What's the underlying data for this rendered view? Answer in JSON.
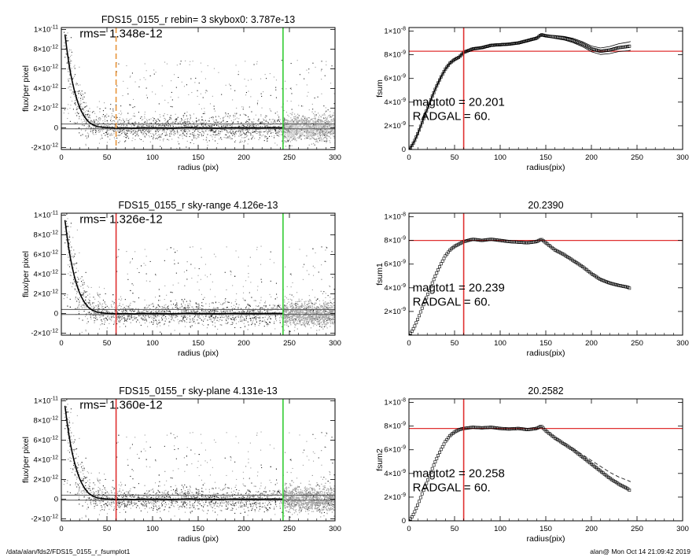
{
  "chart_data": [
    {
      "type": "scatter",
      "title": "FDS15_0155_r rebin= 3    skybox0:  3.787e-13",
      "xlabel": "radius (pix)",
      "ylabel": "flux/per pixel",
      "xlim": [
        0,
        300
      ],
      "ylim": [
        -2.2e-12,
        1.02e-11
      ],
      "xticks": [
        0,
        50,
        100,
        150,
        200,
        250,
        300
      ],
      "xtick_labels": [
        "0",
        "50",
        "100",
        "150",
        "200",
        "250",
        "300"
      ],
      "yticks": [
        -2e-12,
        0,
        2e-12,
        4e-12,
        6e-12,
        8e-12,
        1e-11
      ],
      "ytick_labels": [
        {
          "m": "-2×10",
          "e": "-12"
        },
        {
          "m": "0",
          "e": ""
        },
        {
          "m": "2×10",
          "e": "-12"
        },
        {
          "m": "4×10",
          "e": "-12"
        },
        {
          "m": "6×10",
          "e": "-12"
        },
        {
          "m": "8×10",
          "e": "-12"
        },
        {
          "m": "1×10",
          "e": "-11"
        }
      ],
      "annotations": [
        {
          "text": "rms= 1.348e-12",
          "x": 20,
          "y": 9.2e-12
        }
      ],
      "vlines": [
        {
          "x": 60,
          "color": "#e8943a",
          "style": "dashed"
        },
        {
          "x": 243,
          "color": "#33cc33",
          "style": "solid"
        }
      ],
      "hlines": [
        3.9e-13,
        -1e-13
      ],
      "profile": {
        "color": "#000000",
        "x": [
          4,
          6,
          8,
          10,
          12,
          14,
          16,
          18,
          20,
          22,
          24,
          26,
          28,
          30,
          33,
          36,
          40,
          45,
          50,
          55,
          60,
          70,
          80,
          90,
          100,
          110,
          120,
          130,
          140,
          150,
          160,
          170,
          180,
          190,
          200,
          210,
          220,
          230,
          240,
          243
        ],
        "y": [
          9.5e-12,
          8e-12,
          6.7e-12,
          5.6e-12,
          4.7e-12,
          3.9e-12,
          3.2e-12,
          2.6e-12,
          2.1e-12,
          1.7e-12,
          1.35e-12,
          1.05e-12,
          8e-13,
          6e-13,
          4e-13,
          2.5e-13,
          1.2e-13,
          6e-14,
          2e-14,
          0,
          -2e-14,
          0,
          -3e-14,
          2e-14,
          -1e-14,
          1e-14,
          -2e-14,
          0,
          3e-14,
          -1e-14,
          1e-14,
          -2e-14,
          0,
          2e-14,
          -1e-14,
          1e-14,
          -1e-14,
          2e-14,
          1e-14,
          1.5e-14
        ]
      },
      "noise_sigma": 6e-13,
      "outlier_max": 7e-12,
      "right_band": true,
      "right_band_style": "boxes"
    },
    {
      "type": "line",
      "title": "",
      "xlabel": "radius(pix)",
      "ylabel": "fsum",
      "xlim": [
        0,
        300
      ],
      "ylim": [
        0,
        1.03e-08
      ],
      "xticks": [
        0,
        50,
        100,
        150,
        200,
        250,
        300
      ],
      "xtick_labels": [
        "0",
        "50",
        "100",
        "150",
        "200",
        "250",
        "300"
      ],
      "yticks": [
        0,
        2e-09,
        4e-09,
        6e-09,
        8e-09,
        1e-08
      ],
      "ytick_labels": [
        {
          "m": "0",
          "e": ""
        },
        {
          "m": "2×10",
          "e": "-9"
        },
        {
          "m": "4×10",
          "e": "-9"
        },
        {
          "m": "6×10",
          "e": "-9"
        },
        {
          "m": "8×10",
          "e": "-9"
        },
        {
          "m": "1×10",
          "e": "-8"
        }
      ],
      "annotations": [
        {
          "text": "magtot0 =  20.201",
          "x": 4,
          "y": 3.7e-09
        },
        {
          "text": "RADGAL =     60.",
          "x": 4,
          "y": 2.5e-09
        }
      ],
      "vlines": [
        {
          "x": 60,
          "color": "#e03030",
          "style": "solid"
        }
      ],
      "hlines_red": [
        8.3e-09
      ],
      "series": [
        {
          "marker": "square",
          "band": true,
          "band_grow": 3e-11,
          "x": [
            0,
            3,
            6,
            10,
            15,
            20,
            25,
            30,
            35,
            40,
            45,
            50,
            55,
            60,
            70,
            80,
            90,
            100,
            110,
            120,
            130,
            140,
            145,
            150,
            160,
            170,
            180,
            190,
            200,
            210,
            220,
            230,
            240,
            243
          ],
          "y": [
            0,
            3e-10,
            7e-10,
            1.4e-09,
            2.4e-09,
            3.4e-09,
            4.4e-09,
            5.3e-09,
            6.1e-09,
            6.8e-09,
            7.3e-09,
            7.6e-09,
            7.8e-09,
            8.2e-09,
            8.5e-09,
            8.6e-09,
            8.8e-09,
            8.85e-09,
            8.9e-09,
            9e-09,
            9.2e-09,
            9.4e-09,
            9.7e-09,
            9.6e-09,
            9.5e-09,
            9.4e-09,
            9.2e-09,
            8.9e-09,
            8.5e-09,
            8.3e-09,
            8.4e-09,
            8.6e-09,
            8.7e-09,
            8.75e-09
          ]
        }
      ]
    },
    {
      "type": "scatter",
      "title": "FDS15_0155_r sky-range  4.126e-13",
      "xlabel": "radius (pix)",
      "ylabel": "flux/per pixel",
      "xlim": [
        0,
        300
      ],
      "ylim": [
        -2.2e-12,
        1.02e-11
      ],
      "xticks": [
        0,
        50,
        100,
        150,
        200,
        250,
        300
      ],
      "xtick_labels": [
        "0",
        "50",
        "100",
        "150",
        "200",
        "250",
        "300"
      ],
      "yticks": [
        -2e-12,
        0,
        2e-12,
        4e-12,
        6e-12,
        8e-12,
        1e-11
      ],
      "ytick_labels": [
        {
          "m": "-2×10",
          "e": "-12"
        },
        {
          "m": "0",
          "e": ""
        },
        {
          "m": "2×10",
          "e": "-12"
        },
        {
          "m": "4×10",
          "e": "-12"
        },
        {
          "m": "6×10",
          "e": "-12"
        },
        {
          "m": "8×10",
          "e": "-12"
        },
        {
          "m": "1×10",
          "e": "-11"
        }
      ],
      "annotations": [
        {
          "text": "rms= 1.326e-12",
          "x": 20,
          "y": 9.2e-12
        }
      ],
      "vlines": [
        {
          "x": 60,
          "color": "#e03030",
          "style": "solid"
        },
        {
          "x": 243,
          "color": "#33cc33",
          "style": "solid"
        }
      ],
      "hlines": [
        4.1e-13,
        -1e-13
      ],
      "profile": {
        "color": "#000000",
        "x": [
          4,
          6,
          8,
          10,
          12,
          14,
          16,
          18,
          20,
          22,
          24,
          26,
          28,
          30,
          33,
          36,
          40,
          45,
          50,
          55,
          60,
          70,
          80,
          90,
          100,
          110,
          120,
          130,
          140,
          150,
          160,
          170,
          180,
          190,
          200,
          210,
          220,
          230,
          240,
          243
        ],
        "y": [
          9.5e-12,
          8e-12,
          6.7e-12,
          5.6e-12,
          4.7e-12,
          3.9e-12,
          3.2e-12,
          2.6e-12,
          2.1e-12,
          1.7e-12,
          1.35e-12,
          1.05e-12,
          8e-13,
          6e-13,
          4e-13,
          2.5e-13,
          1.2e-13,
          6e-14,
          2e-14,
          0,
          -2e-14,
          0,
          -3e-14,
          2e-14,
          -1e-14,
          1e-14,
          -2e-14,
          0,
          3e-14,
          -1e-14,
          1e-14,
          -2e-14,
          0,
          2e-14,
          -1e-14,
          1e-14,
          -1e-14,
          2e-14,
          1e-14,
          1.5e-14
        ]
      },
      "noise_sigma": 6e-13,
      "outlier_max": 7e-12,
      "right_band": true,
      "right_band_style": "plain"
    },
    {
      "type": "line",
      "title": "20.2390",
      "xlabel": "radius(pix)",
      "ylabel": "fsum1",
      "xlim": [
        0,
        300
      ],
      "ylim": [
        0,
        1.03e-08
      ],
      "xticks": [
        0,
        50,
        100,
        150,
        200,
        250,
        300
      ],
      "xtick_labels": [
        "0",
        "50",
        "100",
        "150",
        "200",
        "250",
        "300"
      ],
      "yticks": [
        2e-09,
        4e-09,
        6e-09,
        8e-09,
        1e-08
      ],
      "ytick_labels": [
        {
          "m": "2×10",
          "e": "-9"
        },
        {
          "m": "4×10",
          "e": "-9"
        },
        {
          "m": "6×10",
          "e": "-9"
        },
        {
          "m": "8×10",
          "e": "-9"
        },
        {
          "m": "1×10",
          "e": "-8"
        }
      ],
      "annotations": [
        {
          "text": "magtot1 =  20.239",
          "x": 4,
          "y": 3.7e-09
        },
        {
          "text": "RADGAL =     60.",
          "x": 4,
          "y": 2.5e-09
        }
      ],
      "vlines": [
        {
          "x": 60,
          "color": "#e03030",
          "style": "solid"
        }
      ],
      "hlines_red": [
        8e-09
      ],
      "series": [
        {
          "marker": "square",
          "band": false,
          "band_grow": 0,
          "x": [
            0,
            3,
            6,
            10,
            15,
            20,
            25,
            30,
            35,
            40,
            45,
            50,
            55,
            60,
            70,
            80,
            90,
            100,
            110,
            120,
            130,
            140,
            145,
            150,
            160,
            170,
            180,
            190,
            200,
            210,
            220,
            230,
            240,
            243
          ],
          "y": [
            0,
            3e-10,
            7e-10,
            1.4e-09,
            2.4e-09,
            3.3e-09,
            4.3e-09,
            5.2e-09,
            6e-09,
            6.7e-09,
            7.2e-09,
            7.5e-09,
            7.7e-09,
            7.9e-09,
            8.1e-09,
            8e-09,
            8.1e-09,
            8e-09,
            7.9e-09,
            7.85e-09,
            7.8e-09,
            7.9e-09,
            8.1e-09,
            7.8e-09,
            7.2e-09,
            6.8e-09,
            6.3e-09,
            5.8e-09,
            5.2e-09,
            4.7e-09,
            4.4e-09,
            4.2e-09,
            4.05e-09,
            3.9e-09
          ]
        }
      ]
    },
    {
      "type": "scatter",
      "title": "FDS15_0155_r sky-plane  4.131e-13",
      "xlabel": "radius (pix)",
      "ylabel": "flux/per pixel",
      "xlim": [
        0,
        300
      ],
      "ylim": [
        -2.2e-12,
        1.02e-11
      ],
      "xticks": [
        0,
        50,
        100,
        150,
        200,
        250,
        300
      ],
      "xtick_labels": [
        "0",
        "50",
        "100",
        "150",
        "200",
        "250",
        "300"
      ],
      "yticks": [
        -2e-12,
        0,
        2e-12,
        4e-12,
        6e-12,
        8e-12,
        1e-11
      ],
      "ytick_labels": [
        {
          "m": "-2×10",
          "e": "-12"
        },
        {
          "m": "0",
          "e": ""
        },
        {
          "m": "2×10",
          "e": "-12"
        },
        {
          "m": "4×10",
          "e": "-12"
        },
        {
          "m": "6×10",
          "e": "-12"
        },
        {
          "m": "8×10",
          "e": "-12"
        },
        {
          "m": "1×10",
          "e": "-11"
        }
      ],
      "annotations": [
        {
          "text": "rms= 1.360e-12",
          "x": 20,
          "y": 9.2e-12
        }
      ],
      "vlines": [
        {
          "x": 60,
          "color": "#e03030",
          "style": "solid"
        },
        {
          "x": 243,
          "color": "#33cc33",
          "style": "solid"
        }
      ],
      "hlines": [
        4.1e-13,
        -1e-13
      ],
      "profile": {
        "color": "#000000",
        "x": [
          4,
          6,
          8,
          10,
          12,
          14,
          16,
          18,
          20,
          22,
          24,
          26,
          28,
          30,
          33,
          36,
          40,
          45,
          50,
          55,
          60,
          70,
          80,
          90,
          100,
          110,
          120,
          130,
          140,
          150,
          160,
          170,
          180,
          190,
          200,
          210,
          220,
          230,
          240,
          243
        ],
        "y": [
          9.5e-12,
          8e-12,
          6.7e-12,
          5.6e-12,
          4.7e-12,
          3.9e-12,
          3.2e-12,
          2.6e-12,
          2.1e-12,
          1.7e-12,
          1.35e-12,
          1.05e-12,
          8e-13,
          6e-13,
          4e-13,
          2.5e-13,
          1.2e-13,
          6e-14,
          2e-14,
          0,
          -2e-14,
          0,
          -3e-14,
          2e-14,
          -1e-14,
          1e-14,
          -2e-14,
          0,
          3e-14,
          -1e-14,
          1e-14,
          -2e-14,
          0,
          2e-14,
          -1e-14,
          1e-14,
          -1e-14,
          2e-14,
          1e-14,
          1.5e-14
        ]
      },
      "noise_sigma": 6e-13,
      "outlier_max": 7e-12,
      "right_band": true,
      "right_band_style": "plain"
    },
    {
      "type": "line",
      "title": "20.2582",
      "xlabel": "radius(pix)",
      "ylabel": "fsum2",
      "xlim": [
        0,
        300
      ],
      "ylim": [
        0,
        1.03e-08
      ],
      "xticks": [
        0,
        50,
        100,
        150,
        200,
        250,
        300
      ],
      "xtick_labels": [
        "0",
        "50",
        "100",
        "150",
        "200",
        "250",
        "300"
      ],
      "yticks": [
        0,
        2e-09,
        4e-09,
        6e-09,
        8e-09,
        1e-08
      ],
      "ytick_labels": [
        {
          "m": "0",
          "e": ""
        },
        {
          "m": "2×10",
          "e": "-9"
        },
        {
          "m": "4×10",
          "e": "-9"
        },
        {
          "m": "6×10",
          "e": "-9"
        },
        {
          "m": "8×10",
          "e": "-9"
        },
        {
          "m": "1×10",
          "e": "-8"
        }
      ],
      "annotations": [
        {
          "text": "magtot2 =  20.258",
          "x": 4,
          "y": 3.7e-09
        },
        {
          "text": "RADGAL =     60.",
          "x": 4,
          "y": 2.5e-09
        }
      ],
      "vlines": [
        {
          "x": 60,
          "color": "#e03030",
          "style": "solid"
        }
      ],
      "hlines_red": [
        7.8e-09
      ],
      "series": [
        {
          "marker": "square",
          "band": false,
          "band_grow": 0,
          "x": [
            0,
            3,
            6,
            10,
            15,
            20,
            25,
            30,
            35,
            40,
            45,
            50,
            55,
            60,
            70,
            80,
            90,
            100,
            110,
            120,
            130,
            140,
            145,
            150,
            160,
            170,
            180,
            190,
            200,
            210,
            220,
            230,
            240,
            243
          ],
          "y": [
            0,
            3e-10,
            7e-10,
            1.4e-09,
            2.4e-09,
            3.3e-09,
            4.3e-09,
            5.2e-09,
            6e-09,
            6.7e-09,
            7.2e-09,
            7.5e-09,
            7.7e-09,
            7.8e-09,
            7.9e-09,
            7.85e-09,
            7.9e-09,
            7.8e-09,
            7.75e-09,
            7.8e-09,
            7.7e-09,
            7.8e-09,
            8e-09,
            7.6e-09,
            7e-09,
            6.5e-09,
            6e-09,
            5.4e-09,
            4.8e-09,
            4.2e-09,
            3.6e-09,
            3.1e-09,
            2.7e-09,
            2.5e-09
          ]
        },
        {
          "marker": "dash",
          "band": false,
          "band_grow": 0,
          "x": [
            180,
            190,
            200,
            210,
            220,
            230,
            240,
            243
          ],
          "y": [
            6.1e-09,
            5.6e-09,
            5.1e-09,
            4.6e-09,
            4.1e-09,
            3.7e-09,
            3.4e-09,
            3.3e-09
          ]
        }
      ]
    }
  ],
  "footer": {
    "left": "/data/alan/fds2/FDS15_0155_r_fsumplot1",
    "right": "alan@  Mon Oct 14 21:09:42 2019"
  }
}
